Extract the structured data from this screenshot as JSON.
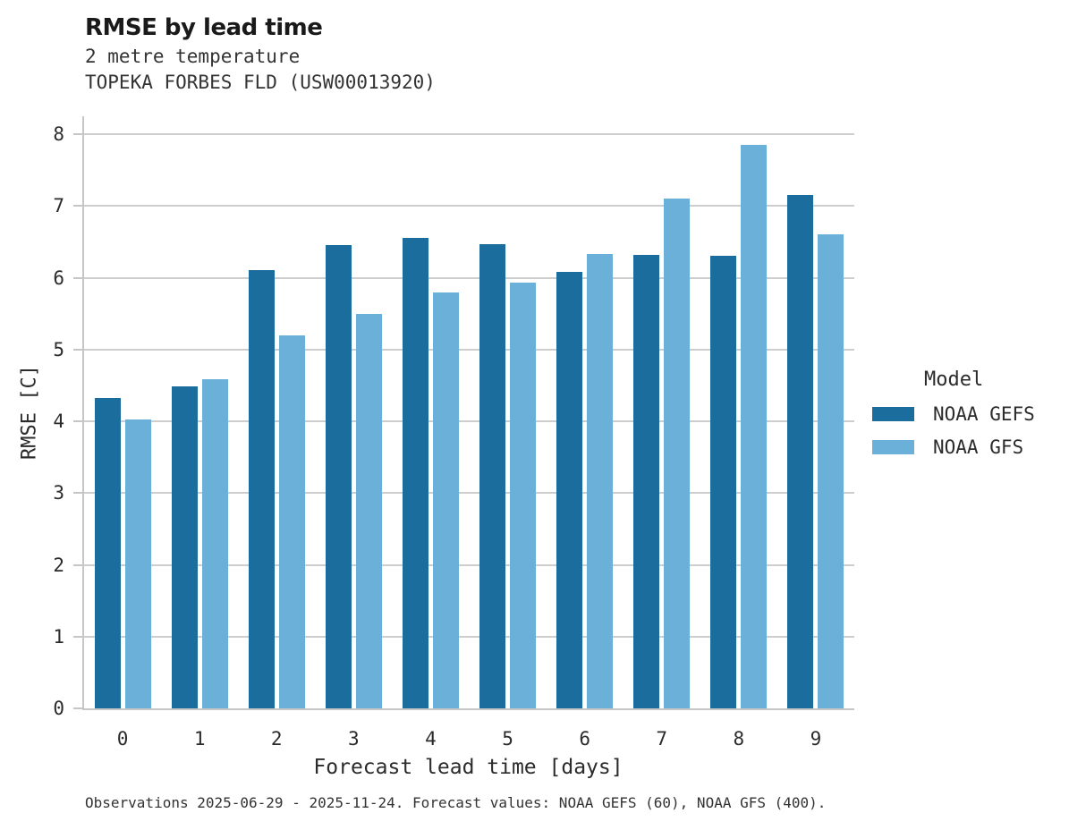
{
  "chart_data": {
    "type": "bar",
    "title": "RMSE by lead time",
    "subtitle": [
      "2 metre temperature",
      "TOPEKA FORBES FLD (USW00013920)"
    ],
    "xlabel": "Forecast lead time [days]",
    "ylabel": "RMSE [C]",
    "categories": [
      "0",
      "1",
      "2",
      "3",
      "4",
      "5",
      "6",
      "7",
      "8",
      "9"
    ],
    "series": [
      {
        "name": "NOAA GEFS",
        "color": "#1a6d9d",
        "values": [
          4.33,
          4.48,
          6.1,
          6.45,
          6.55,
          6.47,
          6.08,
          6.32,
          6.31,
          7.15
        ]
      },
      {
        "name": "NOAA GFS",
        "color": "#6ab0d9",
        "values": [
          4.02,
          4.58,
          5.2,
          5.5,
          5.79,
          5.93,
          6.33,
          7.1,
          7.85,
          6.6
        ]
      }
    ],
    "ylim": [
      0,
      8
    ],
    "yticks": [
      0,
      1,
      2,
      3,
      4,
      5,
      6,
      7,
      8
    ],
    "grid": "horizontal",
    "legend_title": "Model",
    "legend_position": "right",
    "caption": "Observations 2025-06-29 - 2025-11-24. Forecast values: NOAA GEFS (60), NOAA GFS (400)."
  }
}
